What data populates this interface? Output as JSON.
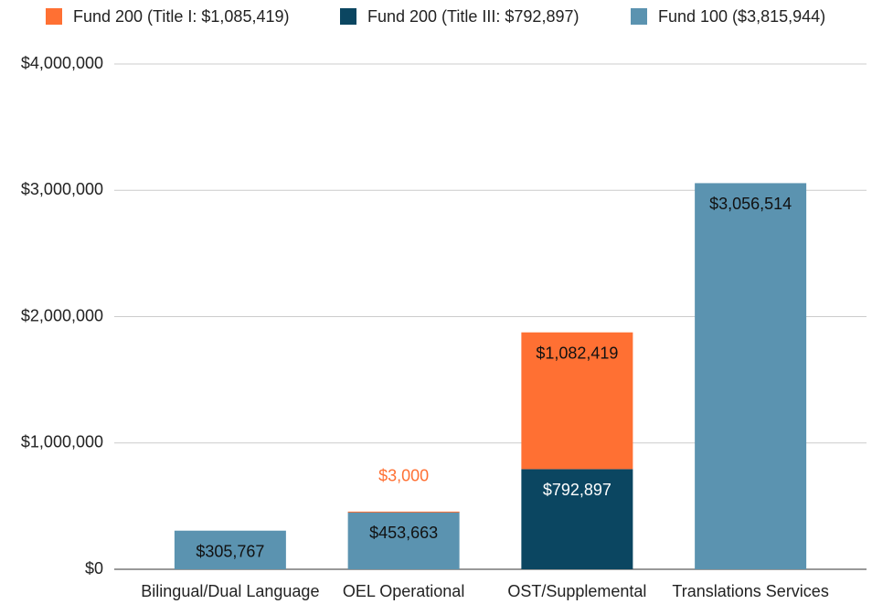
{
  "chart_data": {
    "type": "stacked_bar",
    "categories": [
      "Bilingual/Dual Language",
      "OEL Operational",
      "OST/Supplemental",
      "Translations Services"
    ],
    "series": [
      {
        "name": "Fund 100 ($3,815,944)",
        "color": "#5b93b0",
        "label_color": "#111111",
        "values": [
          305767,
          453663,
          null,
          3056514
        ],
        "value_labels": [
          "$305,767",
          "$453,663",
          null,
          "$3,056,514"
        ]
      },
      {
        "name": "Fund 200 (Title III: $792,897)",
        "color": "#0b4661",
        "label_color": "#ffffff",
        "values": [
          null,
          null,
          792897,
          null
        ],
        "value_labels": [
          null,
          null,
          "$792,897",
          null
        ]
      },
      {
        "name": "Fund 200 (Title I: $1,085,419)",
        "color": "#ff7033",
        "label_color": "#111111",
        "values": [
          null,
          3000,
          1082419,
          null
        ],
        "value_labels": [
          null,
          "$3,000",
          "$1,082,419",
          null
        ]
      }
    ],
    "legend_order": [
      2,
      1,
      0
    ],
    "legend": "top",
    "ylim": [
      0,
      4000000
    ],
    "yticks": [
      {
        "value": 0,
        "label": "$0"
      },
      {
        "value": 1000000,
        "label": "$1,000,000"
      },
      {
        "value": 2000000,
        "label": "$2,000,000"
      },
      {
        "value": 3000000,
        "label": "$3,000,000"
      },
      {
        "value": 4000000,
        "label": "$4,000,000"
      }
    ],
    "grid": true
  }
}
